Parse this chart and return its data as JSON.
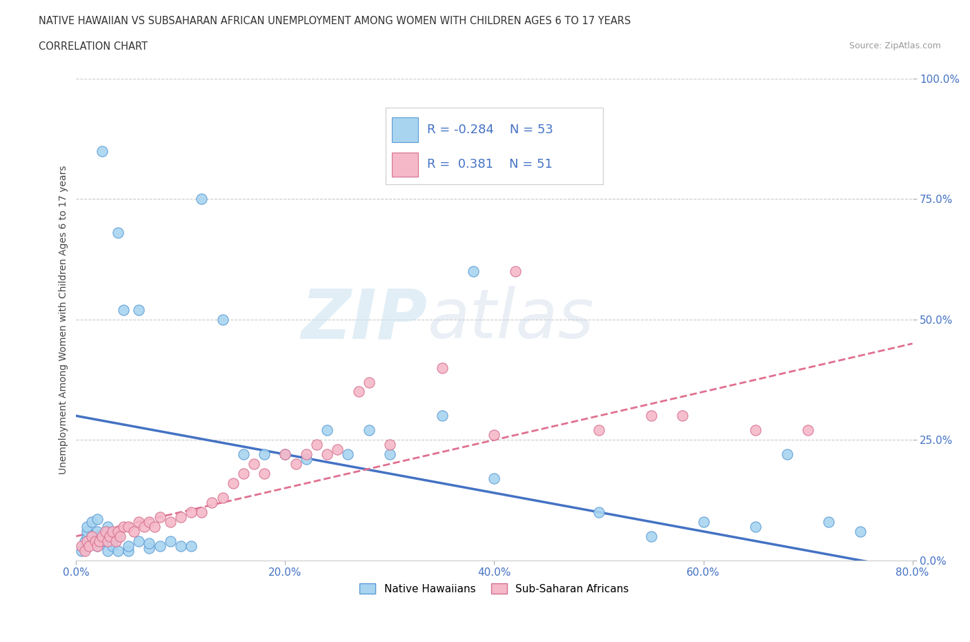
{
  "title_line1": "NATIVE HAWAIIAN VS SUBSAHARAN AFRICAN UNEMPLOYMENT AMONG WOMEN WITH CHILDREN AGES 6 TO 17 YEARS",
  "title_line2": "CORRELATION CHART",
  "source": "Source: ZipAtlas.com",
  "ylabel": "Unemployment Among Women with Children Ages 6 to 17 years",
  "watermark_zip": "ZIP",
  "watermark_atlas": "atlas",
  "legend_label1": "Native Hawaiians",
  "legend_label2": "Sub-Saharan Africans",
  "r1": -0.284,
  "n1": 53,
  "r2": 0.381,
  "n2": 51,
  "color_blue_fill": "#A8D4F0",
  "color_blue_edge": "#5B9BD5",
  "color_pink_fill": "#F5B8C8",
  "color_pink_edge": "#D47090",
  "color_blue_line": "#4472C4",
  "color_pink_line": "#E07090",
  "color_tick": "#4472C4",
  "xlim": [
    0.0,
    0.8
  ],
  "ylim": [
    0.0,
    1.0
  ],
  "xticks": [
    0.0,
    0.2,
    0.4,
    0.6,
    0.8
  ],
  "yticks": [
    0.0,
    0.25,
    0.5,
    0.75,
    1.0
  ],
  "xtick_labels": [
    "0.0%",
    "20.0%",
    "40.0%",
    "60.0%",
    "80.0%"
  ],
  "ytick_labels": [
    "0.0%",
    "25.0%",
    "50.0%",
    "75.0%",
    "100.0%"
  ],
  "blue_x": [
    0.005,
    0.008,
    0.01,
    0.01,
    0.01,
    0.015,
    0.015,
    0.018,
    0.02,
    0.02,
    0.02,
    0.025,
    0.025,
    0.03,
    0.03,
    0.03,
    0.03,
    0.035,
    0.035,
    0.04,
    0.04,
    0.04,
    0.045,
    0.05,
    0.05,
    0.06,
    0.06,
    0.07,
    0.07,
    0.08,
    0.09,
    0.1,
    0.11,
    0.12,
    0.14,
    0.16,
    0.18,
    0.2,
    0.22,
    0.24,
    0.26,
    0.28,
    0.3,
    0.35,
    0.38,
    0.4,
    0.5,
    0.55,
    0.6,
    0.65,
    0.68,
    0.72,
    0.75
  ],
  "blue_y": [
    0.02,
    0.04,
    0.05,
    0.06,
    0.07,
    0.05,
    0.08,
    0.04,
    0.03,
    0.06,
    0.085,
    0.04,
    0.85,
    0.05,
    0.06,
    0.07,
    0.02,
    0.04,
    0.03,
    0.05,
    0.68,
    0.02,
    0.52,
    0.02,
    0.03,
    0.04,
    0.52,
    0.025,
    0.035,
    0.03,
    0.04,
    0.03,
    0.03,
    0.75,
    0.5,
    0.22,
    0.22,
    0.22,
    0.21,
    0.27,
    0.22,
    0.27,
    0.22,
    0.3,
    0.6,
    0.17,
    0.1,
    0.05,
    0.08,
    0.07,
    0.22,
    0.08,
    0.06
  ],
  "pink_x": [
    0.005,
    0.008,
    0.01,
    0.012,
    0.015,
    0.018,
    0.02,
    0.022,
    0.025,
    0.028,
    0.03,
    0.032,
    0.035,
    0.038,
    0.04,
    0.042,
    0.045,
    0.05,
    0.055,
    0.06,
    0.065,
    0.07,
    0.075,
    0.08,
    0.09,
    0.1,
    0.11,
    0.12,
    0.13,
    0.14,
    0.15,
    0.16,
    0.17,
    0.18,
    0.2,
    0.21,
    0.22,
    0.23,
    0.24,
    0.25,
    0.27,
    0.28,
    0.3,
    0.35,
    0.4,
    0.42,
    0.5,
    0.55,
    0.58,
    0.65,
    0.7
  ],
  "pink_y": [
    0.03,
    0.02,
    0.04,
    0.03,
    0.05,
    0.04,
    0.03,
    0.04,
    0.05,
    0.06,
    0.04,
    0.05,
    0.06,
    0.04,
    0.06,
    0.05,
    0.07,
    0.07,
    0.06,
    0.08,
    0.07,
    0.08,
    0.07,
    0.09,
    0.08,
    0.09,
    0.1,
    0.1,
    0.12,
    0.13,
    0.16,
    0.18,
    0.2,
    0.18,
    0.22,
    0.2,
    0.22,
    0.24,
    0.22,
    0.23,
    0.35,
    0.37,
    0.24,
    0.4,
    0.26,
    0.6,
    0.27,
    0.3,
    0.3,
    0.27,
    0.27
  ],
  "background_color": "#FFFFFF",
  "grid_color": "#BBBBBB",
  "title_color": "#333333",
  "axis_label_color": "#444444"
}
